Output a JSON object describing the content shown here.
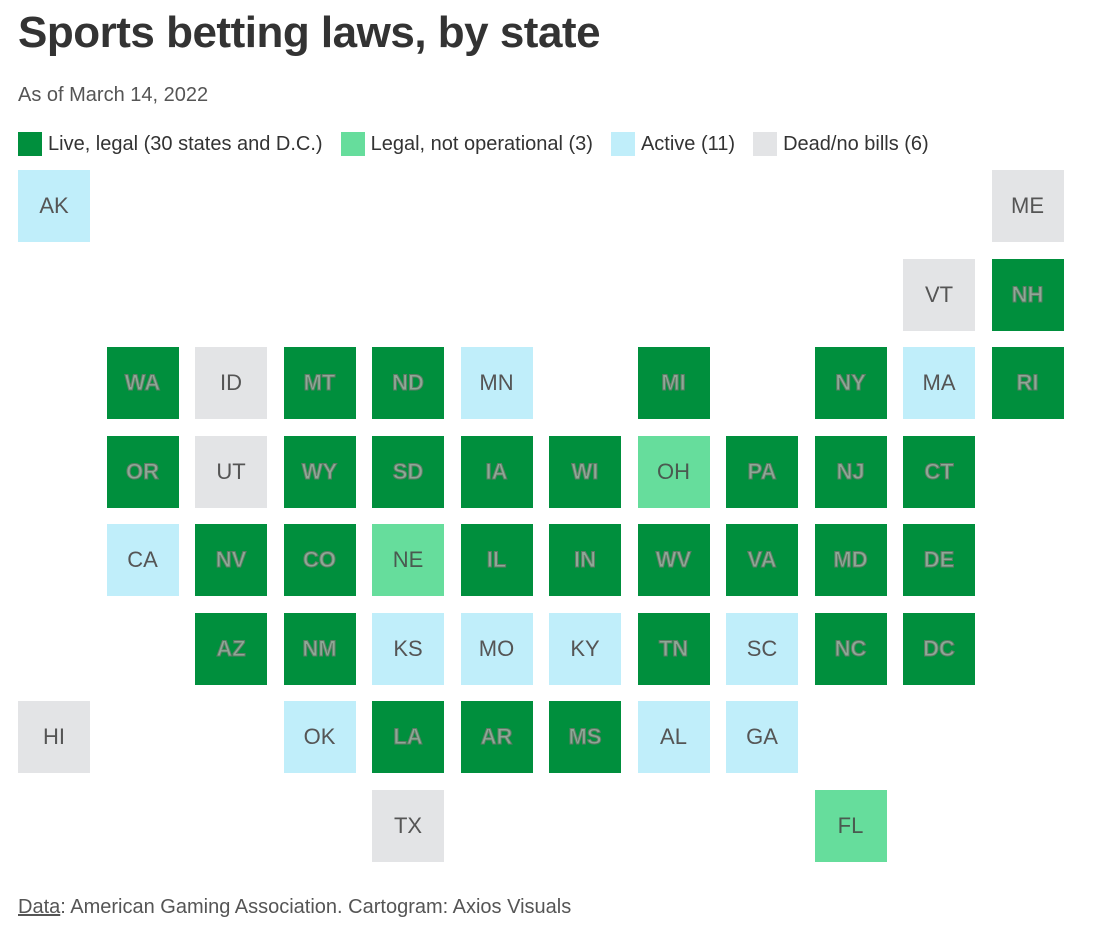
{
  "title": "Sports betting laws, by state",
  "subtitle": "As of March 14, 2022",
  "legend": [
    {
      "key": "live",
      "label": "Live, legal (30 states and D.C.)",
      "color": "#008f3d"
    },
    {
      "key": "legal",
      "label": "Legal, not operational (3)",
      "color": "#66dd9c"
    },
    {
      "key": "active",
      "label": "Active (11)",
      "color": "#c0eefa"
    },
    {
      "key": "dead",
      "label": "Dead/no bills (6)",
      "color": "#e3e4e6"
    }
  ],
  "states": [
    {
      "abbr": "AK",
      "status": "active",
      "col": 0,
      "row": 0
    },
    {
      "abbr": "ME",
      "status": "dead",
      "col": 11,
      "row": 0
    },
    {
      "abbr": "VT",
      "status": "dead",
      "col": 10,
      "row": 1
    },
    {
      "abbr": "NH",
      "status": "live",
      "col": 11,
      "row": 1
    },
    {
      "abbr": "WA",
      "status": "live",
      "col": 1,
      "row": 2
    },
    {
      "abbr": "ID",
      "status": "dead",
      "col": 2,
      "row": 2
    },
    {
      "abbr": "MT",
      "status": "live",
      "col": 3,
      "row": 2
    },
    {
      "abbr": "ND",
      "status": "live",
      "col": 4,
      "row": 2
    },
    {
      "abbr": "MN",
      "status": "active",
      "col": 5,
      "row": 2
    },
    {
      "abbr": "MI",
      "status": "live",
      "col": 7,
      "row": 2
    },
    {
      "abbr": "NY",
      "status": "live",
      "col": 9,
      "row": 2
    },
    {
      "abbr": "MA",
      "status": "active",
      "col": 10,
      "row": 2
    },
    {
      "abbr": "RI",
      "status": "live",
      "col": 11,
      "row": 2
    },
    {
      "abbr": "OR",
      "status": "live",
      "col": 1,
      "row": 3
    },
    {
      "abbr": "UT",
      "status": "dead",
      "col": 2,
      "row": 3
    },
    {
      "abbr": "WY",
      "status": "live",
      "col": 3,
      "row": 3
    },
    {
      "abbr": "SD",
      "status": "live",
      "col": 4,
      "row": 3
    },
    {
      "abbr": "IA",
      "status": "live",
      "col": 5,
      "row": 3
    },
    {
      "abbr": "WI",
      "status": "live",
      "col": 6,
      "row": 3
    },
    {
      "abbr": "OH",
      "status": "legal",
      "col": 7,
      "row": 3
    },
    {
      "abbr": "PA",
      "status": "live",
      "col": 8,
      "row": 3
    },
    {
      "abbr": "NJ",
      "status": "live",
      "col": 9,
      "row": 3
    },
    {
      "abbr": "CT",
      "status": "live",
      "col": 10,
      "row": 3
    },
    {
      "abbr": "CA",
      "status": "active",
      "col": 1,
      "row": 4
    },
    {
      "abbr": "NV",
      "status": "live",
      "col": 2,
      "row": 4
    },
    {
      "abbr": "CO",
      "status": "live",
      "col": 3,
      "row": 4
    },
    {
      "abbr": "NE",
      "status": "legal",
      "col": 4,
      "row": 4
    },
    {
      "abbr": "IL",
      "status": "live",
      "col": 5,
      "row": 4
    },
    {
      "abbr": "IN",
      "status": "live",
      "col": 6,
      "row": 4
    },
    {
      "abbr": "WV",
      "status": "live",
      "col": 7,
      "row": 4
    },
    {
      "abbr": "VA",
      "status": "live",
      "col": 8,
      "row": 4
    },
    {
      "abbr": "MD",
      "status": "live",
      "col": 9,
      "row": 4
    },
    {
      "abbr": "DE",
      "status": "live",
      "col": 10,
      "row": 4
    },
    {
      "abbr": "AZ",
      "status": "live",
      "col": 2,
      "row": 5
    },
    {
      "abbr": "NM",
      "status": "live",
      "col": 3,
      "row": 5
    },
    {
      "abbr": "KS",
      "status": "active",
      "col": 4,
      "row": 5
    },
    {
      "abbr": "MO",
      "status": "active",
      "col": 5,
      "row": 5
    },
    {
      "abbr": "KY",
      "status": "active",
      "col": 6,
      "row": 5
    },
    {
      "abbr": "TN",
      "status": "live",
      "col": 7,
      "row": 5
    },
    {
      "abbr": "SC",
      "status": "active",
      "col": 8,
      "row": 5
    },
    {
      "abbr": "NC",
      "status": "live",
      "col": 9,
      "row": 5
    },
    {
      "abbr": "DC",
      "status": "live",
      "col": 10,
      "row": 5
    },
    {
      "abbr": "HI",
      "status": "dead",
      "col": 0,
      "row": 6
    },
    {
      "abbr": "OK",
      "status": "active",
      "col": 3,
      "row": 6
    },
    {
      "abbr": "LA",
      "status": "live",
      "col": 4,
      "row": 6
    },
    {
      "abbr": "AR",
      "status": "live",
      "col": 5,
      "row": 6
    },
    {
      "abbr": "MS",
      "status": "live",
      "col": 6,
      "row": 6
    },
    {
      "abbr": "AL",
      "status": "active",
      "col": 7,
      "row": 6
    },
    {
      "abbr": "GA",
      "status": "active",
      "col": 8,
      "row": 6
    },
    {
      "abbr": "TX",
      "status": "dead",
      "col": 4,
      "row": 7
    },
    {
      "abbr": "FL",
      "status": "legal",
      "col": 9,
      "row": 7
    }
  ],
  "source": {
    "link_label": "Data",
    "text": ": American Gaming Association. Cartogram: Axios Visuals"
  }
}
